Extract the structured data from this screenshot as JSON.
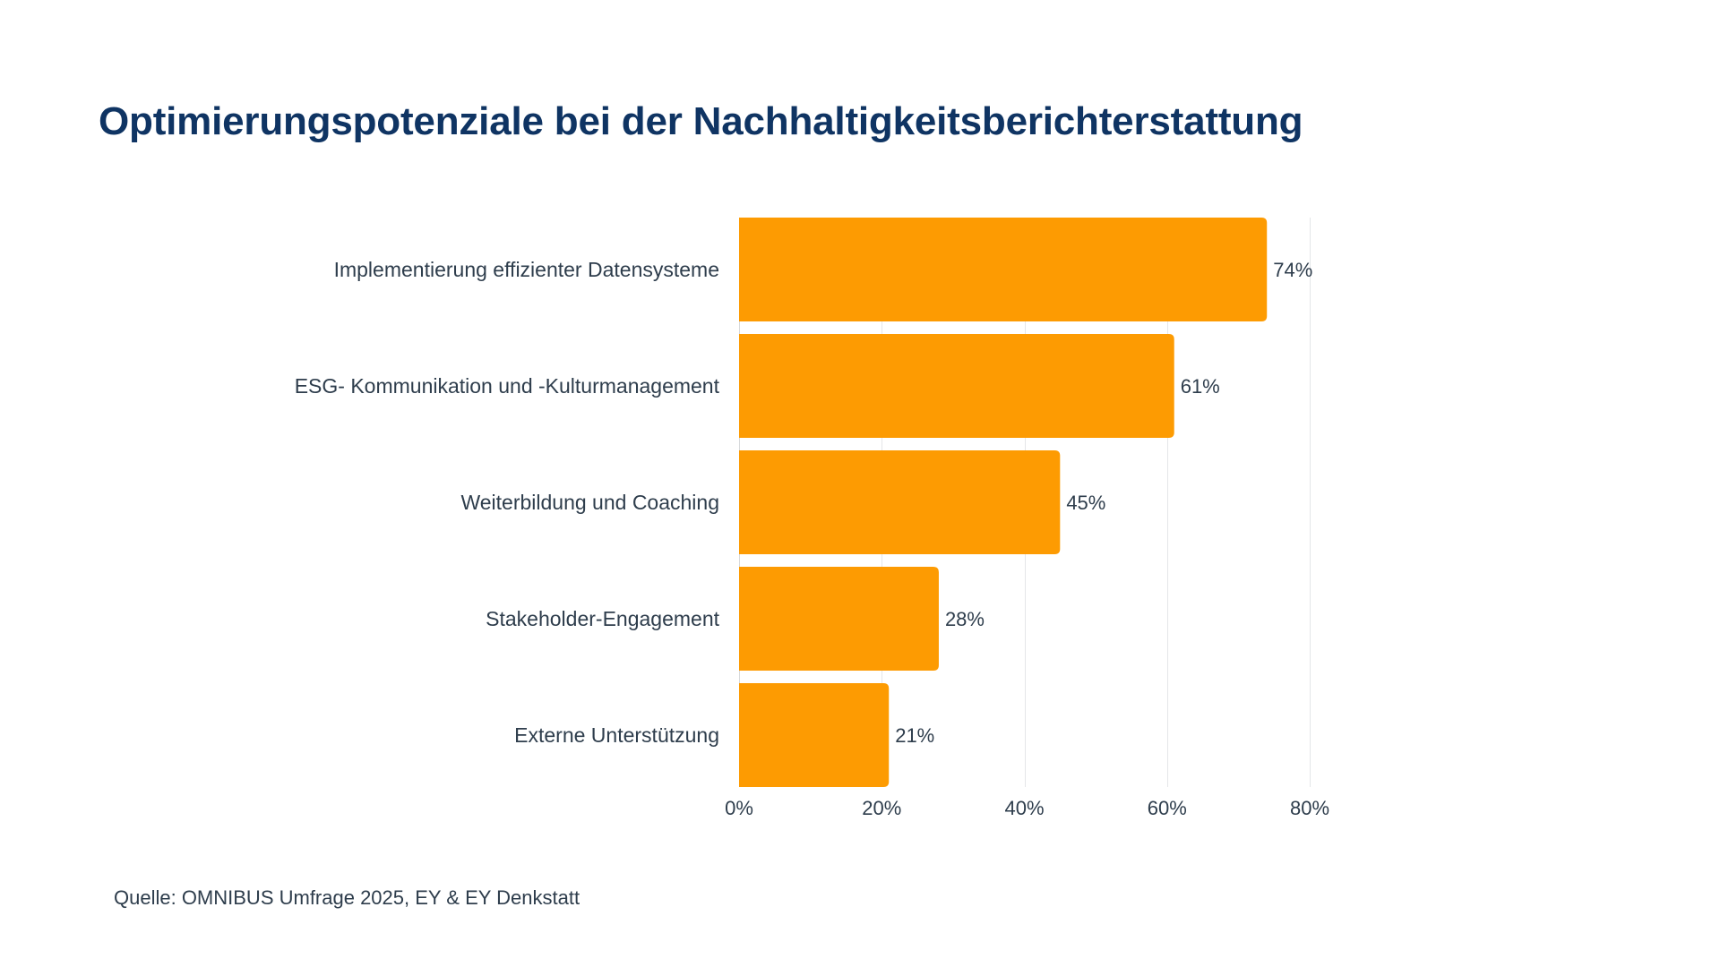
{
  "title": "Optimierungspotenziale bei der Nachhaltigkeitsberichterstattung",
  "source": "Quelle: OMNIBUS Umfrage 2025, EY & EY Denkstatt",
  "colors": {
    "bar": "#fd9b02",
    "title": "#0f3463",
    "text": "#2e3d4c",
    "grid": "#e4e6e8"
  },
  "chart_data": {
    "type": "bar",
    "orientation": "horizontal",
    "title": "Optimierungspotenziale bei der Nachhaltigkeitsberichterstattung",
    "categories": [
      "Implementierung effizienter Datensysteme",
      "ESG- Kommunikation und -Kulturmanagement",
      "Weiterbildung und Coaching",
      "Stakeholder-Engagement",
      "Externe Unterstützung"
    ],
    "values": [
      74,
      61,
      45,
      28,
      21
    ],
    "value_labels": [
      "74%",
      "61%",
      "45%",
      "28%",
      "21%"
    ],
    "unit": "%",
    "xlabel": "",
    "ylabel": "",
    "xlim": [
      0,
      80
    ],
    "xticks": [
      0,
      20,
      40,
      60,
      80
    ],
    "xtick_labels": [
      "0%",
      "20%",
      "40%",
      "60%",
      "80%"
    ],
    "grid": "vertical",
    "legend": "none",
    "source": "Quelle: OMNIBUS Umfrage 2025, EY & EY Denkstatt"
  }
}
